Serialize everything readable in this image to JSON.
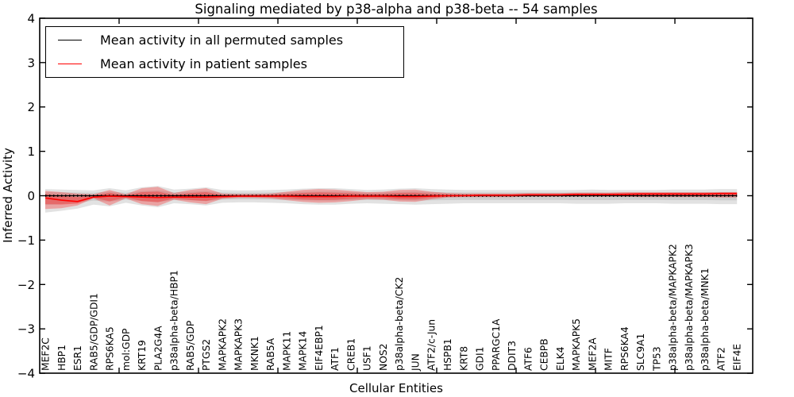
{
  "title": "Signaling mediated by p38-alpha and p38-beta -- 54 samples",
  "axes": {
    "xlabel": "Cellular Entities",
    "ylabel": "Inferred Activity"
  },
  "legend": [
    {
      "label": "Mean activity in all permuted samples",
      "color": "#000000"
    },
    {
      "label": "Mean activity in patient samples",
      "color": "#ff0000"
    }
  ],
  "colors": {
    "permuted_line": "#000000",
    "patient_line": "#ff0000",
    "permuted_band": "rgba(110,110,110,0.20)",
    "permuted_band_inner": "rgba(110,110,110,0.18)",
    "patient_band": "rgba(255,0,0,0.28)",
    "patient_band_inner": "rgba(255,0,0,0.28)"
  },
  "chart_data": {
    "type": "line",
    "title": "Signaling mediated by p38-alpha and p38-beta -- 54 samples",
    "xlabel": "Cellular Entities",
    "ylabel": "Inferred Activity",
    "ylim": [
      -4,
      4
    ],
    "yticks": [
      4,
      3,
      2,
      1,
      0,
      -1,
      -2,
      -3,
      -4
    ],
    "grid": false,
    "legend_position": "upper left",
    "categories": [
      "MEF2C",
      "HBP1",
      "ESR1",
      "RAB5/GDP/GDI1",
      "RPS6KA5",
      "mol:GDP",
      "KRT19",
      "PLA2G4A",
      "p38alpha-beta/HBP1",
      "RAB5/GDP",
      "PTGS2",
      "MAPKAPK2",
      "MAPKAPK3",
      "MKNK1",
      "RAB5A",
      "MAPK11",
      "MAPK14",
      "EIF4EBP1",
      "ATF1",
      "CREB1",
      "USF1",
      "NOS2",
      "p38alpha-beta/CK2",
      "JUN",
      "ATF2/c-Jun",
      "HSPB1",
      "KRT8",
      "GDI1",
      "PPARGC1A",
      "DDIT3",
      "ATF6",
      "CEBPB",
      "ELK4",
      "MAPKAPK5",
      "MEF2A",
      "MITF",
      "RPS6KA4",
      "SLC9A1",
      "TP53",
      "p38alpha-beta/MAPKAPK2",
      "p38alpha-beta/MAPKAPK3",
      "p38alpha-beta/MNK1",
      "ATF2",
      "EIF4E"
    ],
    "series": [
      {
        "name": "Mean activity in all permuted samples",
        "color": "#000000",
        "values": [
          0,
          0,
          0,
          0,
          0,
          0,
          0,
          0,
          0,
          0,
          0,
          0,
          0,
          0,
          0,
          0,
          0,
          0,
          0,
          0,
          0,
          0,
          0,
          0,
          0,
          0,
          0,
          0,
          0,
          0,
          0,
          0,
          0,
          0,
          0,
          0,
          0,
          0,
          0,
          0,
          0,
          0,
          0,
          0
        ]
      },
      {
        "name": "Mean activity in patient samples",
        "color": "#ff0000",
        "values": [
          -0.05,
          -0.1,
          -0.13,
          -0.03,
          -0.01,
          -0.02,
          -0.03,
          -0.04,
          -0.03,
          -0.03,
          -0.03,
          -0.02,
          -0.01,
          -0.01,
          -0.01,
          -0.01,
          -0.02,
          -0.02,
          -0.02,
          -0.01,
          -0.01,
          -0.01,
          -0.02,
          -0.02,
          -0.01,
          0,
          0,
          0.01,
          0.01,
          0.01,
          0.02,
          0.02,
          0.02,
          0.03,
          0.03,
          0.03,
          0.03,
          0.04,
          0.04,
          0.04,
          0.04,
          0.04,
          0.05,
          0.05
        ]
      }
    ],
    "bands": [
      {
        "name": "permuted-samples-envelope",
        "upper": [
          0.15,
          0.14,
          0.13,
          0.12,
          0.17,
          0.12,
          0.19,
          0.22,
          0.14,
          0.16,
          0.19,
          0.13,
          0.12,
          0.12,
          0.13,
          0.14,
          0.16,
          0.17,
          0.17,
          0.15,
          0.13,
          0.14,
          0.16,
          0.17,
          0.15,
          0.14,
          0.13,
          0.13,
          0.13,
          0.13,
          0.13,
          0.13,
          0.13,
          0.13,
          0.14,
          0.13,
          0.13,
          0.13,
          0.13,
          0.14,
          0.14,
          0.14,
          0.15,
          0.15
        ],
        "lower": [
          -0.38,
          -0.34,
          -0.29,
          -0.2,
          -0.24,
          -0.16,
          -0.22,
          -0.26,
          -0.17,
          -0.19,
          -0.22,
          -0.16,
          -0.15,
          -0.15,
          -0.16,
          -0.17,
          -0.19,
          -0.2,
          -0.2,
          -0.18,
          -0.17,
          -0.18,
          -0.19,
          -0.2,
          -0.19,
          -0.18,
          -0.17,
          -0.17,
          -0.17,
          -0.17,
          -0.17,
          -0.17,
          -0.17,
          -0.18,
          -0.18,
          -0.18,
          -0.17,
          -0.17,
          -0.17,
          -0.18,
          -0.18,
          -0.18,
          -0.19,
          -0.19
        ]
      },
      {
        "name": "patient-samples-envelope",
        "upper": [
          0.11,
          0.08,
          0.05,
          0.03,
          0.13,
          0.03,
          0.17,
          0.2,
          0.06,
          0.13,
          0.17,
          0.05,
          0.04,
          0.04,
          0.05,
          0.09,
          0.13,
          0.15,
          0.14,
          0.11,
          0.08,
          0.09,
          0.13,
          0.14,
          0.09,
          0.06,
          0.05,
          0.05,
          0.05,
          0.05,
          0.06,
          0.06,
          0.06,
          0.07,
          0.07,
          0.07,
          0.08,
          0.08,
          0.08,
          0.08,
          0.08,
          0.08,
          0.08,
          0.08
        ],
        "lower": [
          -0.3,
          -0.28,
          -0.22,
          -0.06,
          -0.22,
          -0.06,
          -0.19,
          -0.23,
          -0.09,
          -0.15,
          -0.19,
          -0.07,
          -0.05,
          -0.05,
          -0.06,
          -0.1,
          -0.14,
          -0.16,
          -0.15,
          -0.12,
          -0.08,
          -0.09,
          -0.13,
          -0.14,
          -0.08,
          -0.04,
          -0.03,
          -0.03,
          -0.03,
          -0.03,
          -0.02,
          -0.02,
          -0.02,
          -0.02,
          -0.02,
          -0.02,
          -0.02,
          -0.03,
          -0.03,
          -0.03,
          -0.03,
          -0.03,
          -0.04,
          -0.04
        ]
      }
    ]
  }
}
